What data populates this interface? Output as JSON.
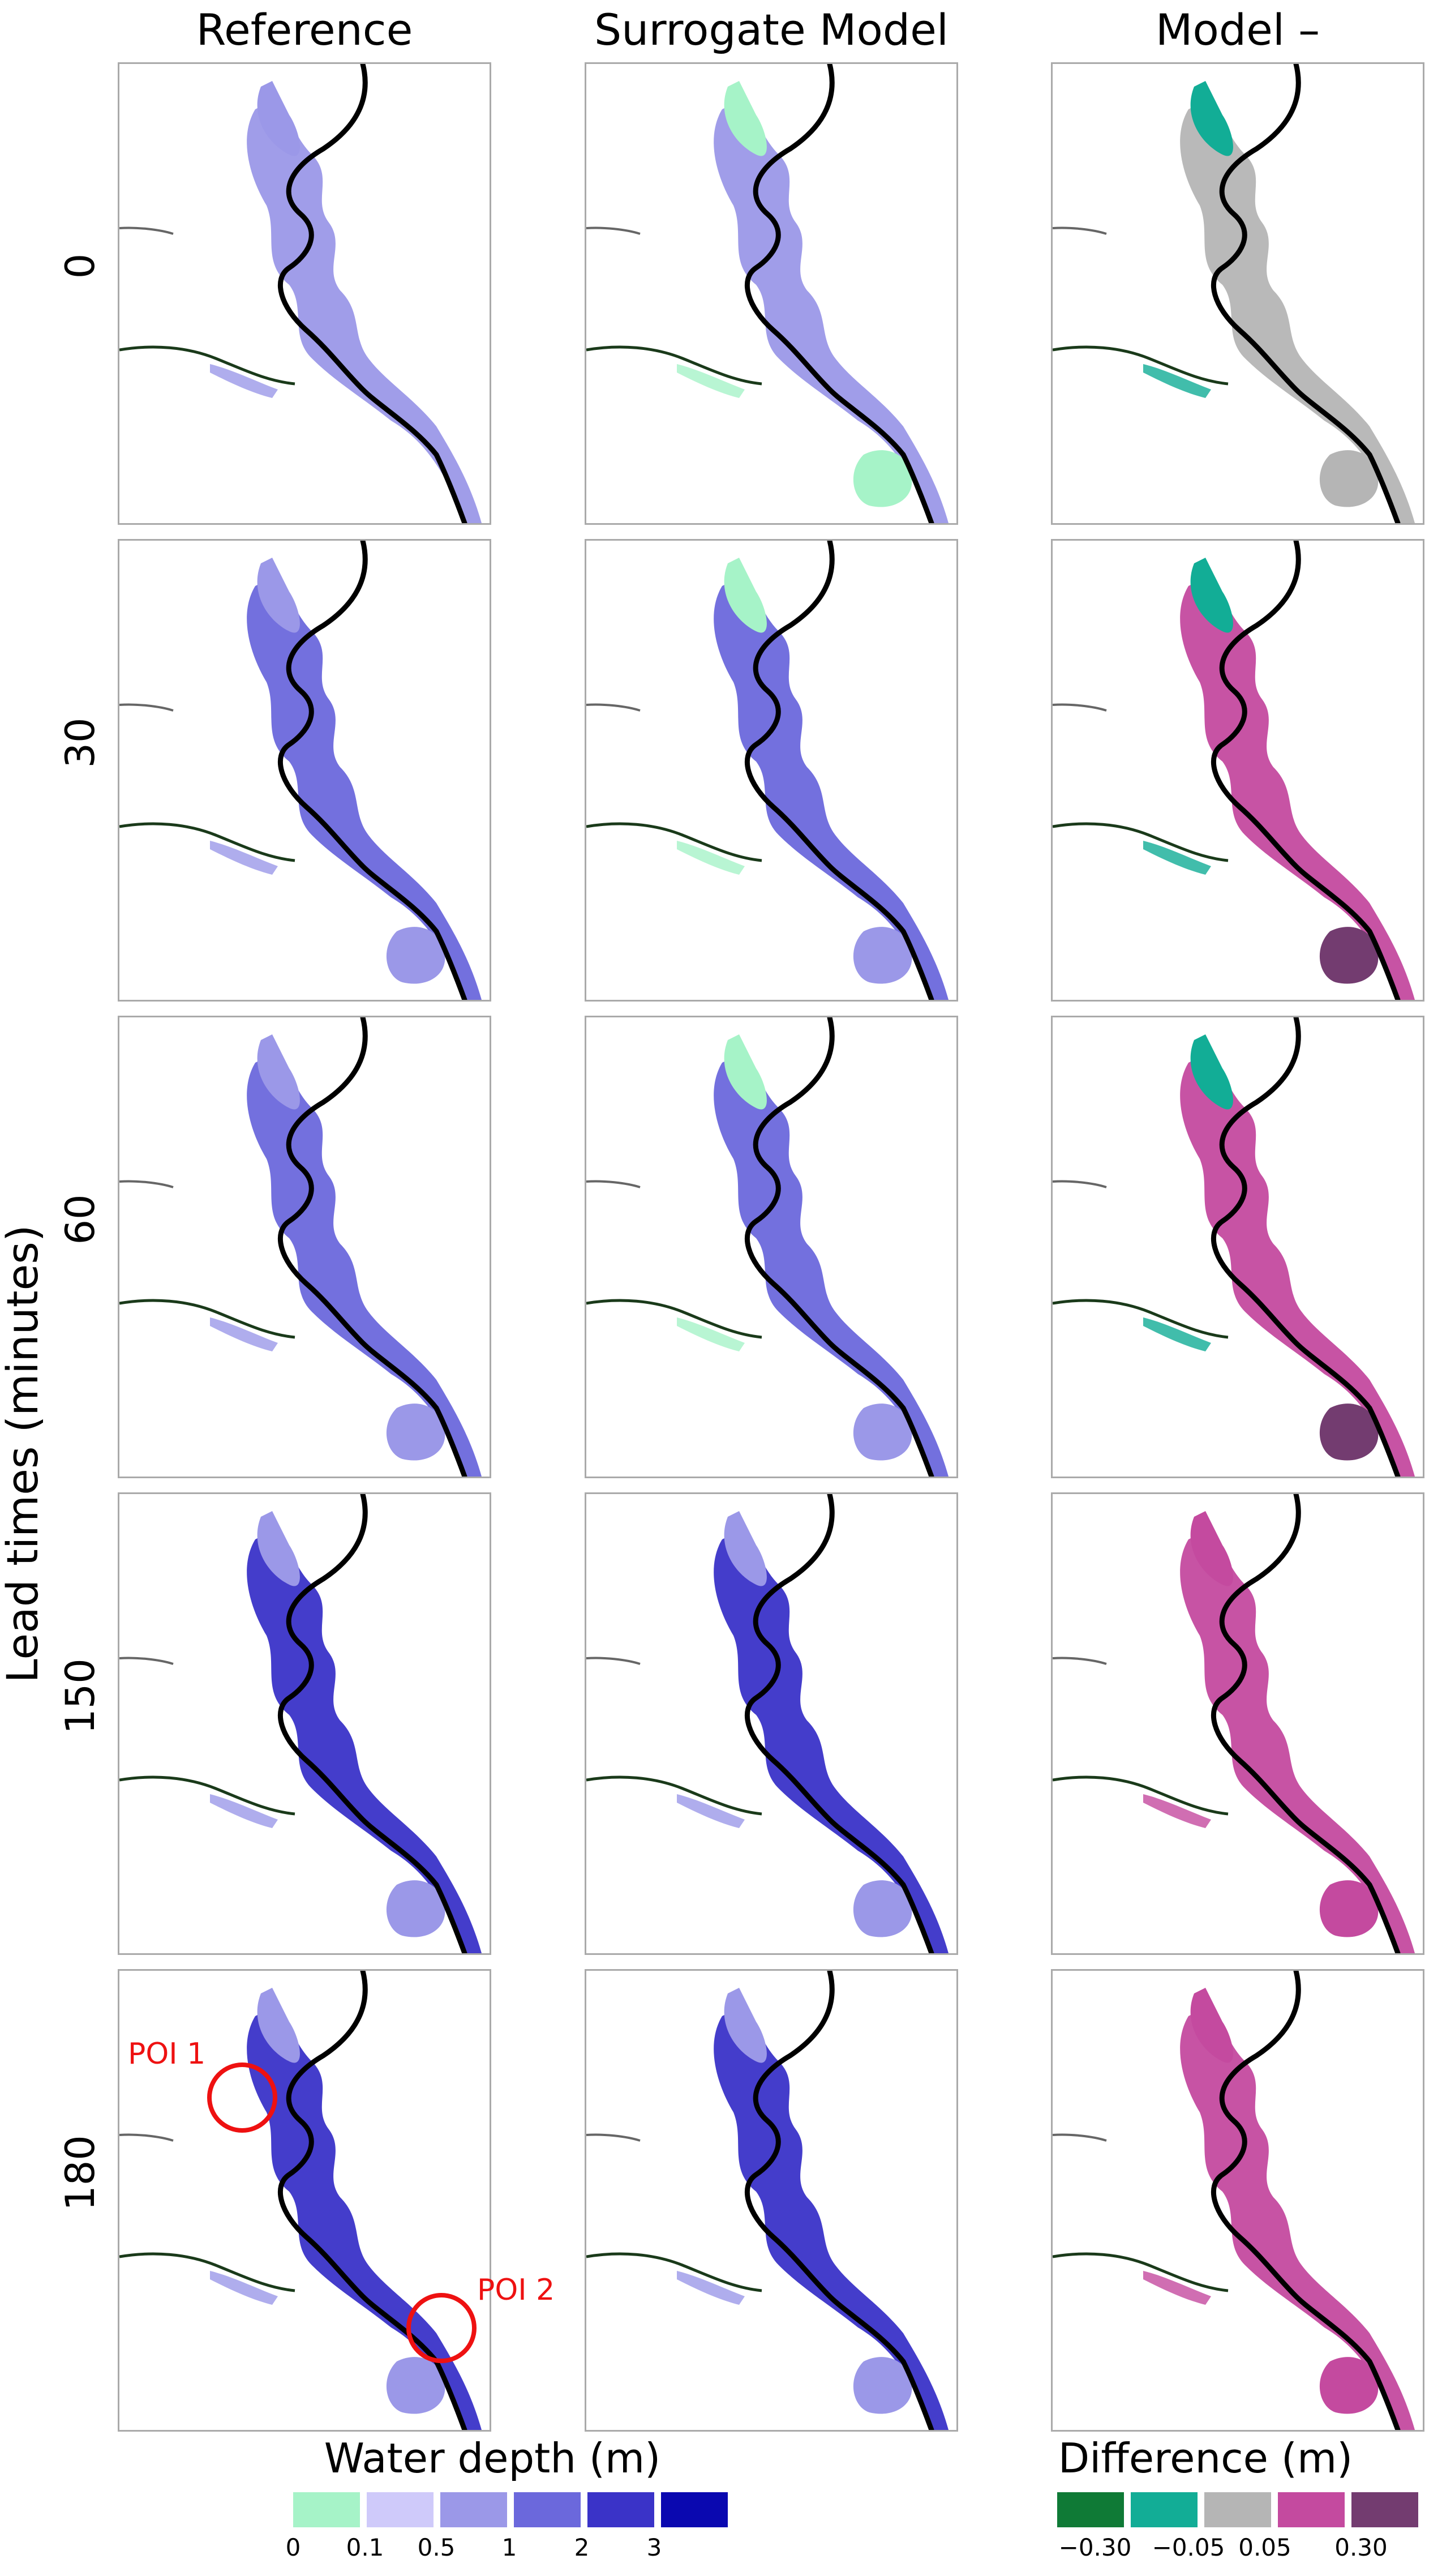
{
  "columns": [
    {
      "title": "Reference"
    },
    {
      "title": "Surrogate Model"
    },
    {
      "title": "Model – Reference"
    }
  ],
  "y_axis_title": "Lead times (minutes)",
  "rows": [
    {
      "label": "0"
    },
    {
      "label": "30"
    },
    {
      "label": "60"
    },
    {
      "label": "150"
    },
    {
      "label": "180"
    }
  ],
  "depth_legend": {
    "title": "Water depth (m)",
    "ticks": [
      "0",
      "0.1",
      "0.5",
      "1",
      "2",
      "3"
    ],
    "colors": [
      "#a6f3c8",
      "#cfcafa",
      "#9b98e8",
      "#6b68dc",
      "#3a33c8",
      "#0a08b0"
    ]
  },
  "diff_legend": {
    "title": "Difference (m)",
    "ticks": [
      "−0.30",
      "−0.05",
      "0.05",
      "0.30"
    ],
    "colors": [
      "#0f7a36",
      "#12ad96",
      "#b5b5b5",
      "#c44a9f",
      "#733c70"
    ]
  },
  "annotations": {
    "poi1": "POI 1",
    "poi2": "POI 2"
  }
}
